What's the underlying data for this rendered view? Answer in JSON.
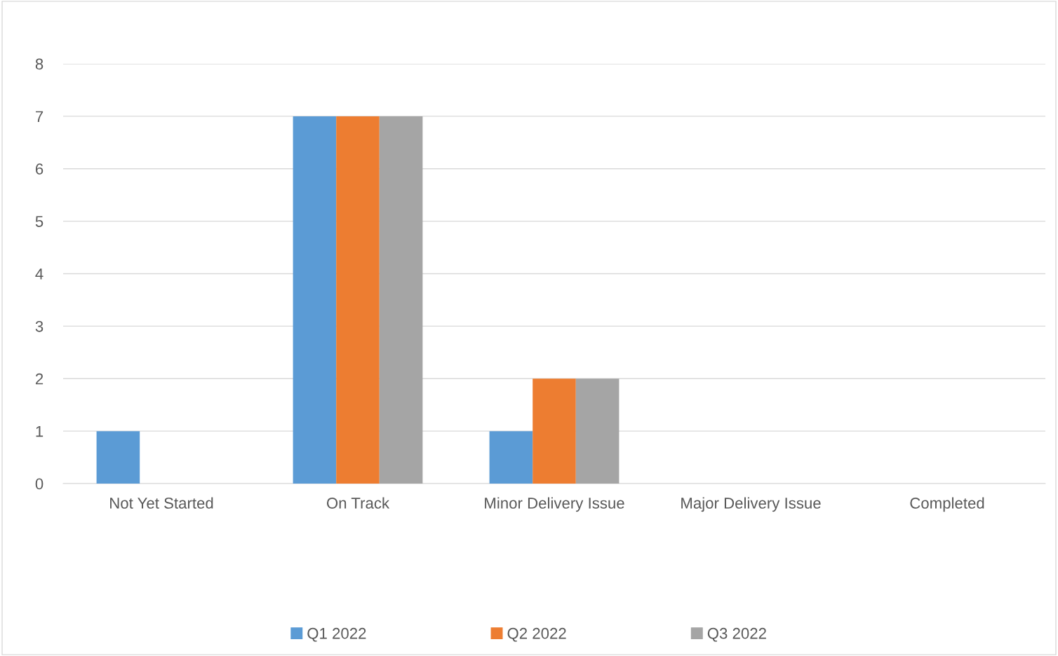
{
  "chart_data": {
    "type": "bar",
    "categories": [
      "Not Yet Started",
      "On Track",
      "Minor Delivery Issue",
      "Major Delivery Issue",
      "Completed"
    ],
    "series": [
      {
        "name": "Q1 2022",
        "color": "#5b9bd5",
        "values": [
          1,
          7,
          1,
          0,
          0
        ]
      },
      {
        "name": "Q2 2022",
        "color": "#ed7d31",
        "values": [
          0,
          7,
          2,
          0,
          0
        ]
      },
      {
        "name": "Q3 2022",
        "color": "#a5a5a5",
        "values": [
          0,
          7,
          2,
          0,
          0
        ]
      }
    ],
    "ylim": [
      0,
      8
    ],
    "yticks": [
      0,
      1,
      2,
      3,
      4,
      5,
      6,
      7,
      8
    ],
    "grid": "y",
    "legend": "bottom"
  }
}
